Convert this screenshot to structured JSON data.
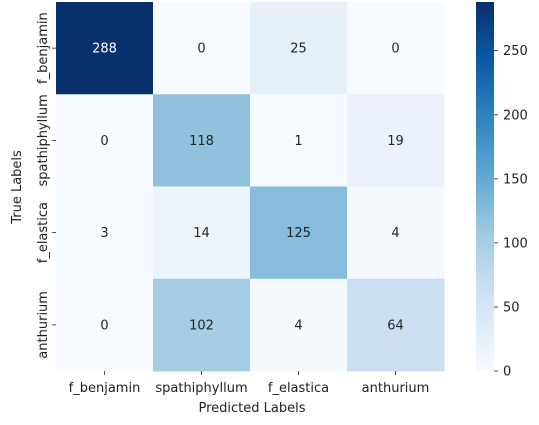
{
  "chart_data": {
    "type": "heatmap",
    "title": "",
    "xlabel": "Predicted Labels",
    "ylabel": "True Labels",
    "x_categories": [
      "f_benjamin",
      "spathiphyllum",
      "f_elastica",
      "anthurium"
    ],
    "y_categories": [
      "f_benjamin",
      "spathiphyllum",
      "f_elastica",
      "anthurium"
    ],
    "values": [
      [
        288,
        0,
        25,
        0
      ],
      [
        0,
        118,
        1,
        19
      ],
      [
        3,
        14,
        125,
        4
      ],
      [
        0,
        102,
        4,
        64
      ]
    ],
    "colormap": "Blues",
    "vmin": 0,
    "vmax": 288,
    "colorbar_ticks": [
      0,
      50,
      100,
      150,
      200,
      250
    ],
    "annotations": true,
    "grid": false
  }
}
